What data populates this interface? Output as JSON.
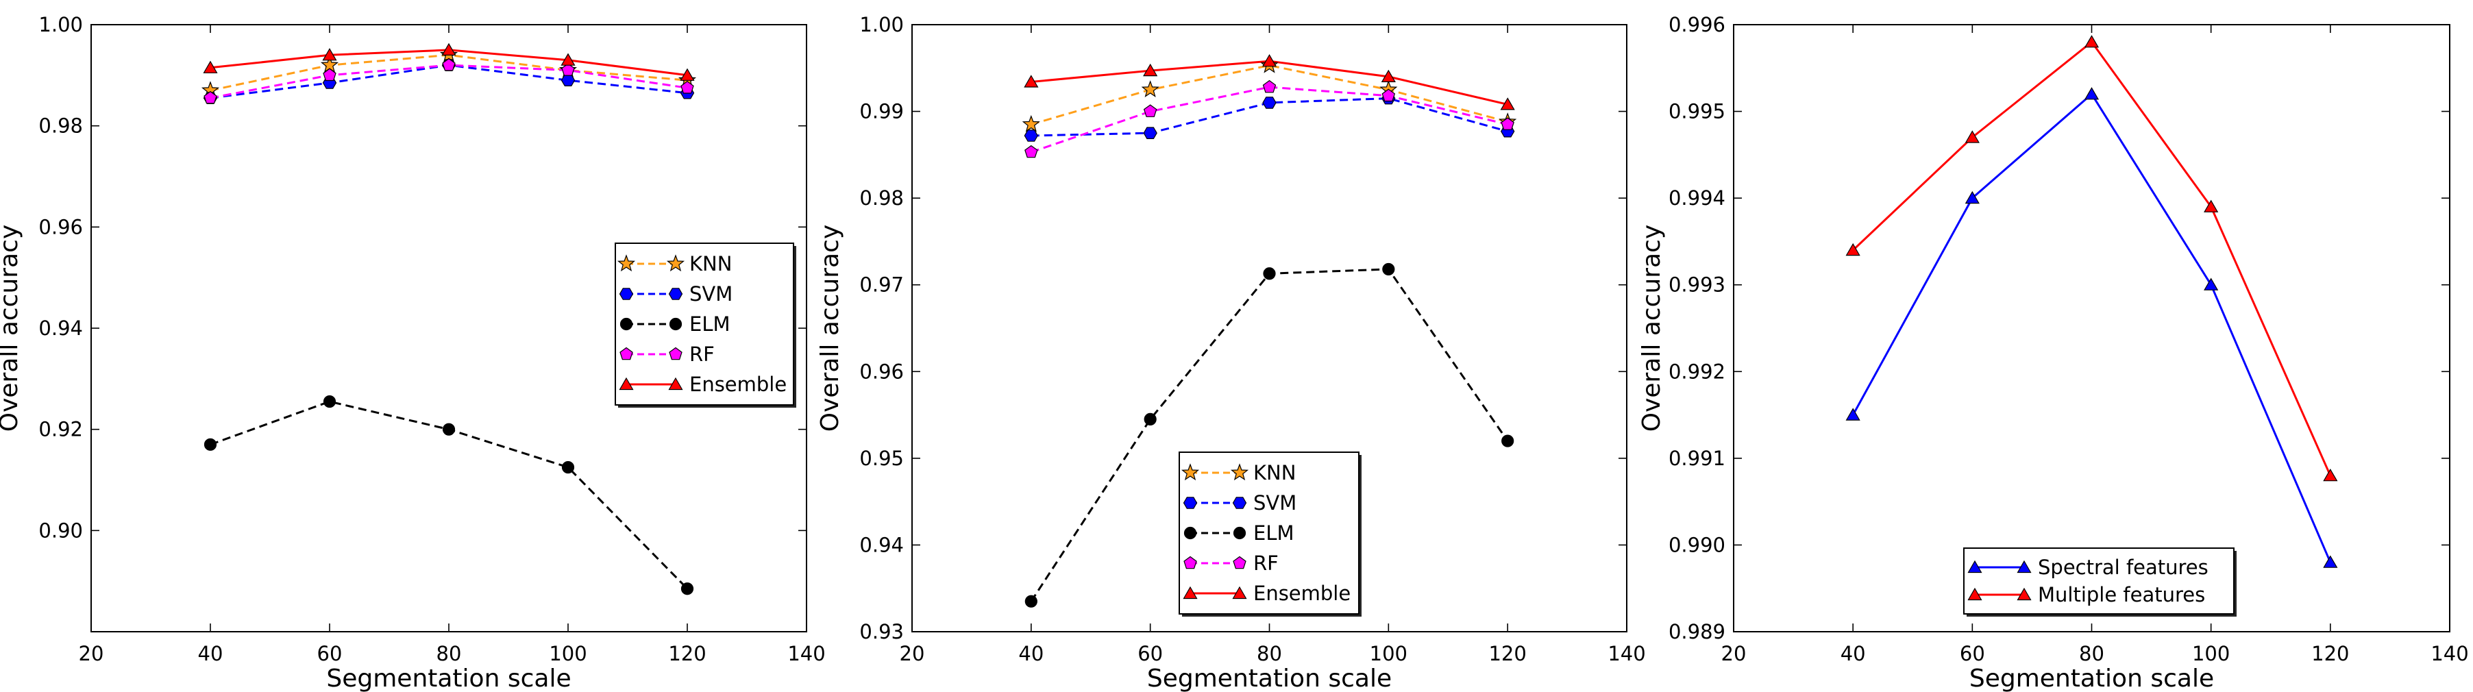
{
  "chart_data": [
    {
      "type": "line",
      "title": "",
      "xlabel": "Segmentation scale",
      "ylabel": "Overall accuracy",
      "xlim": [
        20,
        140
      ],
      "ylim": [
        0.88,
        1.0
      ],
      "grid": false,
      "legend_position": "center-right",
      "x_ticks": [
        "20",
        "40",
        "60",
        "80",
        "100",
        "120",
        "140"
      ],
      "y_ticks": [
        "0.90",
        "0.92",
        "0.94",
        "0.96",
        "0.98",
        "1.00"
      ],
      "x": [
        40,
        60,
        80,
        100,
        120
      ],
      "series": [
        {
          "name": "KNN",
          "color": "#ff9f1a",
          "line": "dashed",
          "marker": "star",
          "values": [
            0.987,
            0.992,
            0.994,
            0.991,
            0.989
          ]
        },
        {
          "name": "SVM",
          "color": "#0000ff",
          "line": "dashed",
          "marker": "hexagon",
          "values": [
            0.9855,
            0.9885,
            0.992,
            0.989,
            0.9865
          ]
        },
        {
          "name": "ELM",
          "color": "#000000",
          "line": "dashed",
          "marker": "circle",
          "values": [
            0.917,
            0.9255,
            0.92,
            0.9125,
            0.8885
          ]
        },
        {
          "name": "RF",
          "color": "#ff00ff",
          "line": "dashed",
          "marker": "pentagon",
          "values": [
            0.9855,
            0.99,
            0.992,
            0.991,
            0.9875
          ]
        },
        {
          "name": "Ensemble",
          "color": "#ff0000",
          "line": "solid",
          "marker": "triangle",
          "values": [
            0.9915,
            0.994,
            0.995,
            0.993,
            0.99
          ]
        }
      ]
    },
    {
      "type": "line",
      "title": "",
      "xlabel": "Segmentation scale",
      "ylabel": "Overall accuracy",
      "xlim": [
        20,
        140
      ],
      "ylim": [
        0.93,
        1.0
      ],
      "grid": false,
      "legend_position": "bottom-center",
      "x_ticks": [
        "20",
        "40",
        "60",
        "80",
        "100",
        "120",
        "140"
      ],
      "y_ticks": [
        "0.93",
        "0.94",
        "0.95",
        "0.96",
        "0.97",
        "0.98",
        "0.99",
        "1.00"
      ],
      "x": [
        40,
        60,
        80,
        100,
        120
      ],
      "series": [
        {
          "name": "KNN",
          "color": "#ff9f1a",
          "line": "dashed",
          "marker": "star",
          "values": [
            0.9885,
            0.9925,
            0.9953,
            0.9925,
            0.9888
          ]
        },
        {
          "name": "SVM",
          "color": "#0000ff",
          "line": "dashed",
          "marker": "hexagon",
          "values": [
            0.9872,
            0.9875,
            0.991,
            0.9915,
            0.9877
          ]
        },
        {
          "name": "ELM",
          "color": "#000000",
          "line": "dashed",
          "marker": "circle",
          "values": [
            0.9335,
            0.9545,
            0.9713,
            0.9718,
            0.952
          ]
        },
        {
          "name": "RF",
          "color": "#ff00ff",
          "line": "dashed",
          "marker": "pentagon",
          "values": [
            0.9853,
            0.99,
            0.9928,
            0.9918,
            0.9885
          ]
        },
        {
          "name": "Ensemble",
          "color": "#ff0000",
          "line": "solid",
          "marker": "triangle",
          "values": [
            0.9934,
            0.9947,
            0.9958,
            0.994,
            0.9908
          ]
        }
      ]
    },
    {
      "type": "line",
      "title": "",
      "xlabel": "Segmentation scale",
      "ylabel": "Overall accuracy",
      "xlim": [
        20,
        140
      ],
      "ylim": [
        0.989,
        0.996
      ],
      "grid": false,
      "legend_position": "bottom-center",
      "x_ticks": [
        "20",
        "40",
        "60",
        "80",
        "100",
        "120",
        "140"
      ],
      "y_ticks": [
        "0.989",
        "0.990",
        "0.991",
        "0.992",
        "0.993",
        "0.994",
        "0.995",
        "0.996"
      ],
      "x": [
        40,
        60,
        80,
        100,
        120
      ],
      "series": [
        {
          "name": "Spectral features",
          "color": "#0000ff",
          "line": "solid",
          "marker": "triangle",
          "values": [
            0.9915,
            0.994,
            0.9952,
            0.993,
            0.9898
          ]
        },
        {
          "name": "Multiple features",
          "color": "#ff0000",
          "line": "solid",
          "marker": "triangle",
          "values": [
            0.9934,
            0.9947,
            0.9958,
            0.9939,
            0.9908
          ]
        }
      ]
    }
  ]
}
